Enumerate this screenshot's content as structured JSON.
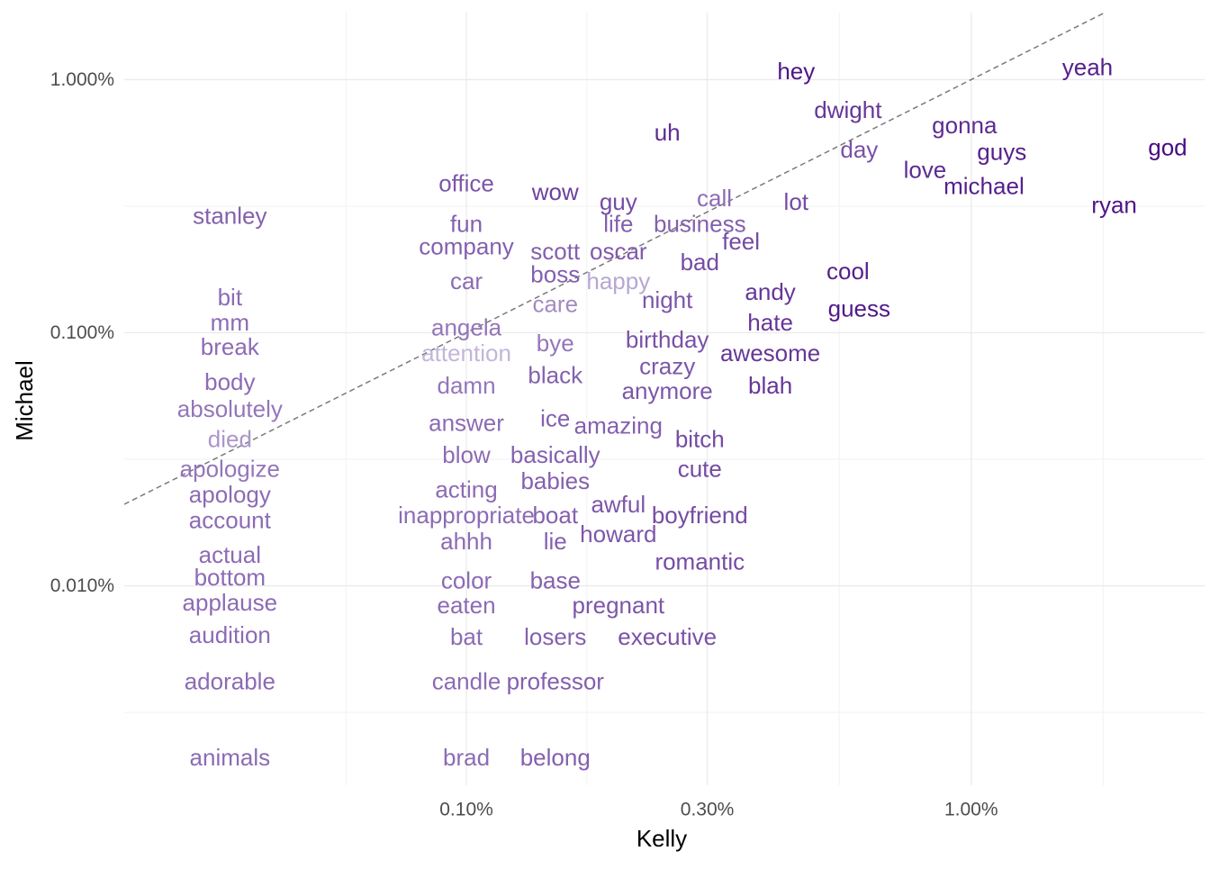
{
  "chart_data": {
    "type": "scatter",
    "xlabel": "Kelly",
    "ylabel": "Michael",
    "x_scale": "log10",
    "y_scale": "log10",
    "xlim": [
      0.00021,
      0.029
    ],
    "ylim": [
      1.63e-05,
      0.0184
    ],
    "x_ticks": [
      {
        "value": 0.001,
        "label": "0.10%"
      },
      {
        "value": 0.003,
        "label": "0.30%"
      },
      {
        "value": 0.01,
        "label": "1.00%"
      }
    ],
    "y_ticks": [
      {
        "value": 0.0001,
        "label": "0.010%"
      },
      {
        "value": 0.001,
        "label": "0.100%"
      },
      {
        "value": 0.01,
        "label": "1.000%"
      }
    ],
    "reference_line": "y = x",
    "grid": true,
    "color_scale": {
      "low": "#d9d6ea",
      "high": "#3f007d"
    },
    "points": [
      {
        "word": "yeah",
        "x": 0.017,
        "y": 0.0112,
        "c": 0.85
      },
      {
        "word": "god",
        "x": 0.0245,
        "y": 0.0054,
        "c": 0.95
      },
      {
        "word": "ryan",
        "x": 0.0192,
        "y": 0.0032,
        "c": 0.9
      },
      {
        "word": "gonna",
        "x": 0.0097,
        "y": 0.0066,
        "c": 0.8
      },
      {
        "word": "guys",
        "x": 0.0115,
        "y": 0.0052,
        "c": 0.85
      },
      {
        "word": "michael",
        "x": 0.0106,
        "y": 0.0038,
        "c": 0.85
      },
      {
        "word": "love",
        "x": 0.0081,
        "y": 0.0044,
        "c": 0.8
      },
      {
        "word": "hey",
        "x": 0.0045,
        "y": 0.0108,
        "c": 0.9
      },
      {
        "word": "dwight",
        "x": 0.0057,
        "y": 0.0076,
        "c": 0.75
      },
      {
        "word": "day",
        "x": 0.006,
        "y": 0.0053,
        "c": 0.62
      },
      {
        "word": "uh",
        "x": 0.0025,
        "y": 0.0062,
        "c": 0.8
      },
      {
        "word": "lot",
        "x": 0.0045,
        "y": 0.0033,
        "c": 0.65
      },
      {
        "word": "cool",
        "x": 0.0057,
        "y": 0.00175,
        "c": 0.85
      },
      {
        "word": "guess",
        "x": 0.006,
        "y": 0.00125,
        "c": 0.88
      },
      {
        "word": "call",
        "x": 0.0031,
        "y": 0.0034,
        "c": 0.5
      },
      {
        "word": "business",
        "x": 0.0029,
        "y": 0.0027,
        "c": 0.55
      },
      {
        "word": "feel",
        "x": 0.0035,
        "y": 0.0023,
        "c": 0.65
      },
      {
        "word": "bad",
        "x": 0.0029,
        "y": 0.0019,
        "c": 0.65
      },
      {
        "word": "andy",
        "x": 0.004,
        "y": 0.00145,
        "c": 0.75
      },
      {
        "word": "hate",
        "x": 0.004,
        "y": 0.0011,
        "c": 0.75
      },
      {
        "word": "awesome",
        "x": 0.004,
        "y": 0.00083,
        "c": 0.75
      },
      {
        "word": "blah",
        "x": 0.004,
        "y": 0.00062,
        "c": 0.75
      },
      {
        "word": "guy",
        "x": 0.002,
        "y": 0.0033,
        "c": 0.65
      },
      {
        "word": "life",
        "x": 0.002,
        "y": 0.0027,
        "c": 0.55
      },
      {
        "word": "oscar",
        "x": 0.002,
        "y": 0.0021,
        "c": 0.58
      },
      {
        "word": "happy",
        "x": 0.002,
        "y": 0.0016,
        "c": 0.22
      },
      {
        "word": "night",
        "x": 0.0025,
        "y": 0.00135,
        "c": 0.6
      },
      {
        "word": "birthday",
        "x": 0.0025,
        "y": 0.00094,
        "c": 0.62
      },
      {
        "word": "crazy",
        "x": 0.0025,
        "y": 0.00074,
        "c": 0.6
      },
      {
        "word": "anymore",
        "x": 0.0025,
        "y": 0.00059,
        "c": 0.6
      },
      {
        "word": "wow",
        "x": 0.0015,
        "y": 0.0036,
        "c": 0.7
      },
      {
        "word": "scott",
        "x": 0.0015,
        "y": 0.0021,
        "c": 0.55
      },
      {
        "word": "boss",
        "x": 0.0015,
        "y": 0.0017,
        "c": 0.55
      },
      {
        "word": "care",
        "x": 0.0015,
        "y": 0.0013,
        "c": 0.35
      },
      {
        "word": "bye",
        "x": 0.0015,
        "y": 0.00091,
        "c": 0.45
      },
      {
        "word": "black",
        "x": 0.0015,
        "y": 0.00068,
        "c": 0.55
      },
      {
        "word": "ice",
        "x": 0.0015,
        "y": 0.00046,
        "c": 0.55
      },
      {
        "word": "amazing",
        "x": 0.002,
        "y": 0.00043,
        "c": 0.55
      },
      {
        "word": "basically",
        "x": 0.0015,
        "y": 0.00033,
        "c": 0.55
      },
      {
        "word": "babies",
        "x": 0.0015,
        "y": 0.00026,
        "c": 0.55
      },
      {
        "word": "bitch",
        "x": 0.0029,
        "y": 0.00038,
        "c": 0.65
      },
      {
        "word": "cute",
        "x": 0.0029,
        "y": 0.00029,
        "c": 0.65
      },
      {
        "word": "awful",
        "x": 0.002,
        "y": 0.00021,
        "c": 0.6
      },
      {
        "word": "howard",
        "x": 0.002,
        "y": 0.00016,
        "c": 0.6
      },
      {
        "word": "boyfriend",
        "x": 0.0029,
        "y": 0.00019,
        "c": 0.65
      },
      {
        "word": "romantic",
        "x": 0.0029,
        "y": 0.000125,
        "c": 0.65
      },
      {
        "word": "boat",
        "x": 0.0015,
        "y": 0.00019,
        "c": 0.55
      },
      {
        "word": "lie",
        "x": 0.0015,
        "y": 0.00015,
        "c": 0.55
      },
      {
        "word": "base",
        "x": 0.0015,
        "y": 0.000105,
        "c": 0.55
      },
      {
        "word": "pregnant",
        "x": 0.002,
        "y": 8.4e-05,
        "c": 0.6
      },
      {
        "word": "losers",
        "x": 0.0015,
        "y": 6.3e-05,
        "c": 0.55
      },
      {
        "word": "executive",
        "x": 0.0025,
        "y": 6.3e-05,
        "c": 0.62
      },
      {
        "word": "professor",
        "x": 0.0015,
        "y": 4.2e-05,
        "c": 0.55
      },
      {
        "word": "belong",
        "x": 0.0015,
        "y": 2.1e-05,
        "c": 0.55
      },
      {
        "word": "office",
        "x": 0.001,
        "y": 0.0039,
        "c": 0.6
      },
      {
        "word": "fun",
        "x": 0.001,
        "y": 0.0027,
        "c": 0.55
      },
      {
        "word": "company",
        "x": 0.001,
        "y": 0.0022,
        "c": 0.55
      },
      {
        "word": "car",
        "x": 0.001,
        "y": 0.0016,
        "c": 0.5
      },
      {
        "word": "angela",
        "x": 0.001,
        "y": 0.00105,
        "c": 0.45
      },
      {
        "word": "attention",
        "x": 0.001,
        "y": 0.00083,
        "c": 0.15
      },
      {
        "word": "damn",
        "x": 0.001,
        "y": 0.00062,
        "c": 0.45
      },
      {
        "word": "answer",
        "x": 0.001,
        "y": 0.00044,
        "c": 0.5
      },
      {
        "word": "blow",
        "x": 0.001,
        "y": 0.00033,
        "c": 0.5
      },
      {
        "word": "acting",
        "x": 0.001,
        "y": 0.00024,
        "c": 0.5
      },
      {
        "word": "inappropriate",
        "x": 0.001,
        "y": 0.00019,
        "c": 0.5
      },
      {
        "word": "ahhh",
        "x": 0.001,
        "y": 0.00015,
        "c": 0.5
      },
      {
        "word": "color",
        "x": 0.001,
        "y": 0.000105,
        "c": 0.5
      },
      {
        "word": "eaten",
        "x": 0.001,
        "y": 8.4e-05,
        "c": 0.5
      },
      {
        "word": "bat",
        "x": 0.001,
        "y": 6.3e-05,
        "c": 0.5
      },
      {
        "word": "candle",
        "x": 0.001,
        "y": 4.2e-05,
        "c": 0.5
      },
      {
        "word": "brad",
        "x": 0.001,
        "y": 2.1e-05,
        "c": 0.5
      },
      {
        "word": "stanley",
        "x": 0.00034,
        "y": 0.0029,
        "c": 0.55
      },
      {
        "word": "bit",
        "x": 0.00034,
        "y": 0.00138,
        "c": 0.5
      },
      {
        "word": "mm",
        "x": 0.00034,
        "y": 0.0011,
        "c": 0.5
      },
      {
        "word": "break",
        "x": 0.00034,
        "y": 0.00088,
        "c": 0.5
      },
      {
        "word": "body",
        "x": 0.00034,
        "y": 0.00064,
        "c": 0.5
      },
      {
        "word": "absolutely",
        "x": 0.00034,
        "y": 0.0005,
        "c": 0.45
      },
      {
        "word": "died",
        "x": 0.00034,
        "y": 0.00038,
        "c": 0.3
      },
      {
        "word": "apologize",
        "x": 0.00034,
        "y": 0.00029,
        "c": 0.45
      },
      {
        "word": "apology",
        "x": 0.00034,
        "y": 0.00023,
        "c": 0.5
      },
      {
        "word": "account",
        "x": 0.00034,
        "y": 0.000182,
        "c": 0.5
      },
      {
        "word": "actual",
        "x": 0.00034,
        "y": 0.000133,
        "c": 0.5
      },
      {
        "word": "bottom",
        "x": 0.00034,
        "y": 0.000108,
        "c": 0.5
      },
      {
        "word": "applause",
        "x": 0.00034,
        "y": 8.6e-05,
        "c": 0.5
      },
      {
        "word": "audition",
        "x": 0.00034,
        "y": 6.4e-05,
        "c": 0.5
      },
      {
        "word": "adorable",
        "x": 0.00034,
        "y": 4.2e-05,
        "c": 0.5
      },
      {
        "word": "animals",
        "x": 0.00034,
        "y": 2.1e-05,
        "c": 0.5
      }
    ]
  }
}
